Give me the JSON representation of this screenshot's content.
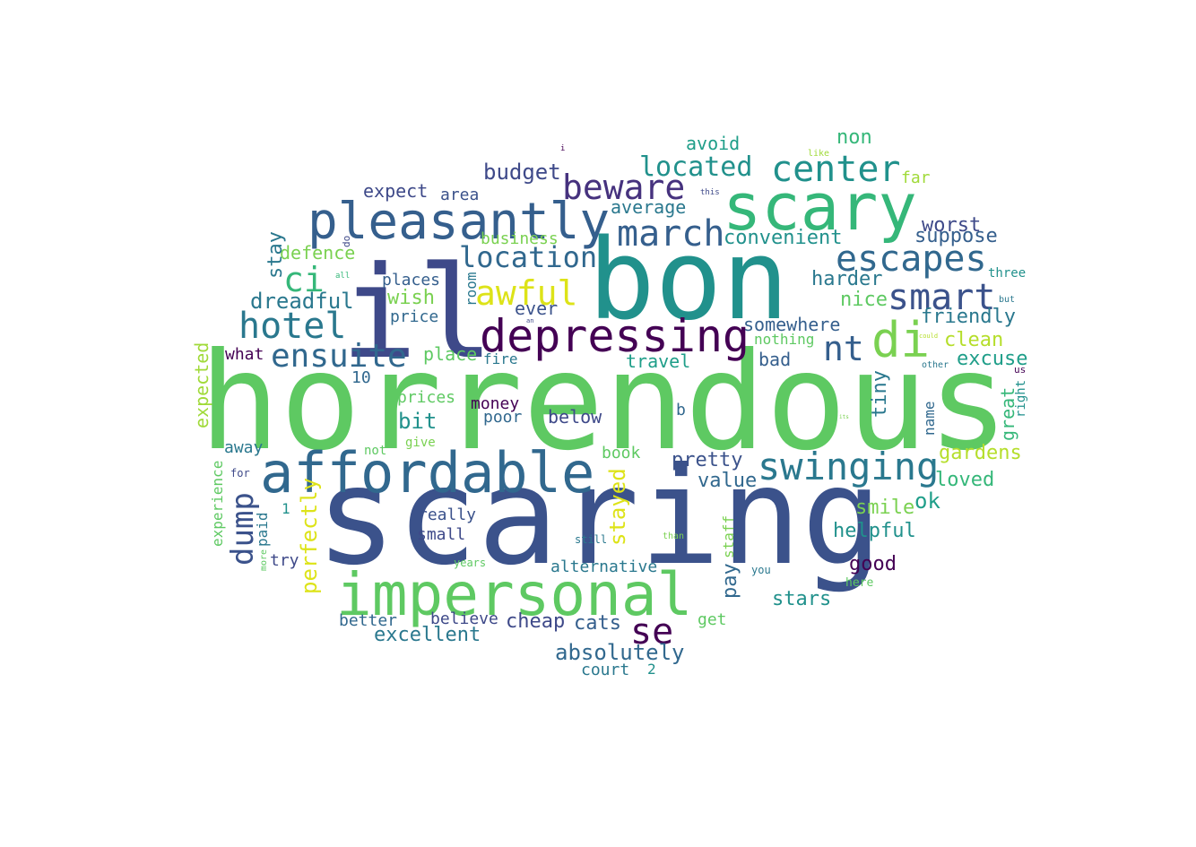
{
  "words": [
    {
      "text": "horrendous",
      "color": "#5ec962"
    },
    {
      "text": "scaring",
      "color": "#3b528b"
    },
    {
      "text": "bon",
      "color": "#21918c"
    },
    {
      "text": "il",
      "color": "#3e4989"
    },
    {
      "text": "scary",
      "color": "#35b779"
    },
    {
      "text": "affordable",
      "color": "#31688e"
    },
    {
      "text": "impersonal",
      "color": "#5ec962"
    },
    {
      "text": "pleasantly",
      "color": "#355f8d"
    },
    {
      "text": "depressing",
      "color": "#440154"
    },
    {
      "text": "swinging",
      "color": "#2a788e"
    },
    {
      "text": "escapes",
      "color": "#31688e"
    },
    {
      "text": "center",
      "color": "#21918c"
    },
    {
      "text": "smart",
      "color": "#3b528b"
    },
    {
      "text": "di",
      "color": "#7ad151"
    },
    {
      "text": "march",
      "color": "#355f8d"
    },
    {
      "text": "beware",
      "color": "#46327e"
    },
    {
      "text": "awful",
      "color": "#dde318"
    },
    {
      "text": "hotel",
      "color": "#2a788e"
    },
    {
      "text": "ensuite",
      "color": "#31688e"
    },
    {
      "text": "location",
      "color": "#31688e"
    },
    {
      "text": "located",
      "color": "#21918c"
    },
    {
      "text": "ci",
      "color": "#35b779"
    },
    {
      "text": "nt",
      "color": "#355f8d"
    },
    {
      "text": "se",
      "color": "#440154"
    },
    {
      "text": "dump",
      "color": "#3b528b"
    },
    {
      "text": "absolutely",
      "color": "#31688e"
    },
    {
      "text": "dreadful",
      "color": "#2a788e"
    },
    {
      "text": "budget",
      "color": "#3e4989"
    },
    {
      "text": "convenient",
      "color": "#21918c"
    },
    {
      "text": "worst",
      "color": "#3e4989"
    },
    {
      "text": "suppose",
      "color": "#355f8d"
    },
    {
      "text": "harder",
      "color": "#2a788e"
    },
    {
      "text": "friendly",
      "color": "#2a788e"
    },
    {
      "text": "clean",
      "color": "#b5de2b"
    },
    {
      "text": "excuse",
      "color": "#1f9e89"
    },
    {
      "text": "somewhere",
      "color": "#355f8d"
    },
    {
      "text": "gardens",
      "color": "#b5de2b"
    },
    {
      "text": "loved",
      "color": "#35b779"
    },
    {
      "text": "helpful",
      "color": "#21918c"
    },
    {
      "text": "smile",
      "color": "#7ad151"
    },
    {
      "text": "ok",
      "color": "#1f9e89"
    },
    {
      "text": "good",
      "color": "#440154"
    },
    {
      "text": "stars",
      "color": "#21918c"
    },
    {
      "text": "pretty",
      "color": "#3b528b"
    },
    {
      "text": "value",
      "color": "#31688e"
    },
    {
      "text": "cats",
      "color": "#355f8d"
    },
    {
      "text": "cheap",
      "color": "#3e4989"
    },
    {
      "text": "excellent",
      "color": "#2a788e"
    },
    {
      "text": "alternative",
      "color": "#2a788e"
    },
    {
      "text": "stayed",
      "color": "#dde318"
    },
    {
      "text": "perfectly",
      "color": "#dde318"
    },
    {
      "text": "pay",
      "color": "#31688e"
    },
    {
      "text": "expected",
      "color": "#a0da39"
    },
    {
      "text": "avoid",
      "color": "#1f9e89"
    },
    {
      "text": "non",
      "color": "#35b779"
    },
    {
      "text": "average",
      "color": "#2a788e"
    },
    {
      "text": "expect",
      "color": "#3e4989"
    },
    {
      "text": "area",
      "color": "#3b528b"
    },
    {
      "text": "far",
      "color": "#a0da39"
    },
    {
      "text": "defence",
      "color": "#7ad151"
    },
    {
      "text": "stay",
      "color": "#2a788e"
    },
    {
      "text": "business",
      "color": "#7ad151"
    },
    {
      "text": "places",
      "color": "#355f8d"
    },
    {
      "text": "wish",
      "color": "#7ad151"
    },
    {
      "text": "price",
      "color": "#31688e"
    },
    {
      "text": "room",
      "color": "#2a788e"
    },
    {
      "text": "ever",
      "color": "#3b528b"
    },
    {
      "text": "nice",
      "color": "#5ec962"
    },
    {
      "text": "nothing",
      "color": "#5ec962"
    },
    {
      "text": "bad",
      "color": "#355f8d"
    },
    {
      "text": "travel",
      "color": "#1f9e89"
    },
    {
      "text": "place",
      "color": "#5ec962"
    },
    {
      "text": "fire",
      "color": "#2a788e"
    },
    {
      "text": "what",
      "color": "#440154"
    },
    {
      "text": "10",
      "color": "#31688e"
    },
    {
      "text": "bit",
      "color": "#21918c"
    },
    {
      "text": "prices",
      "color": "#5ec962"
    },
    {
      "text": "money",
      "color": "#440154"
    },
    {
      "text": "poor",
      "color": "#31688e"
    },
    {
      "text": "below",
      "color": "#3e4989"
    },
    {
      "text": "give",
      "color": "#7ad151"
    },
    {
      "text": "not",
      "color": "#5ec962"
    },
    {
      "text": "away",
      "color": "#2a788e"
    },
    {
      "text": "experience",
      "color": "#5ec962"
    },
    {
      "text": "paid",
      "color": "#2a788e"
    },
    {
      "text": "for",
      "color": "#3e4989"
    },
    {
      "text": "1",
      "color": "#21918c"
    },
    {
      "text": "really",
      "color": "#3b528b"
    },
    {
      "text": "small",
      "color": "#3e4989"
    },
    {
      "text": "try",
      "color": "#3e4989"
    },
    {
      "text": "years",
      "color": "#5ec962"
    },
    {
      "text": "still",
      "color": "#2a788e"
    },
    {
      "text": "than",
      "color": "#7ad151"
    },
    {
      "text": "staff",
      "color": "#7ad151"
    },
    {
      "text": "you",
      "color": "#2a788e"
    },
    {
      "text": "here",
      "color": "#5ec962"
    },
    {
      "text": "get",
      "color": "#5ec962"
    },
    {
      "text": "better",
      "color": "#31688e"
    },
    {
      "text": "believe",
      "color": "#3e4989"
    },
    {
      "text": "court",
      "color": "#2a788e"
    },
    {
      "text": "2",
      "color": "#21918c"
    },
    {
      "text": "book",
      "color": "#5ec962"
    },
    {
      "text": "b",
      "color": "#31688e"
    },
    {
      "text": "tiny",
      "color": "#2a788e"
    },
    {
      "text": "name",
      "color": "#31688e"
    },
    {
      "text": "great",
      "color": "#35b779"
    },
    {
      "text": "right",
      "color": "#21918c"
    },
    {
      "text": "us",
      "color": "#440154"
    },
    {
      "text": "other",
      "color": "#2a788e"
    },
    {
      "text": "but",
      "color": "#2a788e"
    },
    {
      "text": "three",
      "color": "#21918c"
    },
    {
      "text": "this",
      "color": "#3e4989"
    },
    {
      "text": "like",
      "color": "#a0da39"
    },
    {
      "text": "i",
      "color": "#440154"
    },
    {
      "text": "do",
      "color": "#3e4989"
    },
    {
      "text": "all",
      "color": "#35b779"
    },
    {
      "text": "an",
      "color": "#3e4989"
    },
    {
      "text": "more",
      "color": "#5ec962"
    },
    {
      "text": "could",
      "color": "#b5de2b"
    },
    {
      "text": "its",
      "color": "#7ad151"
    }
  ]
}
